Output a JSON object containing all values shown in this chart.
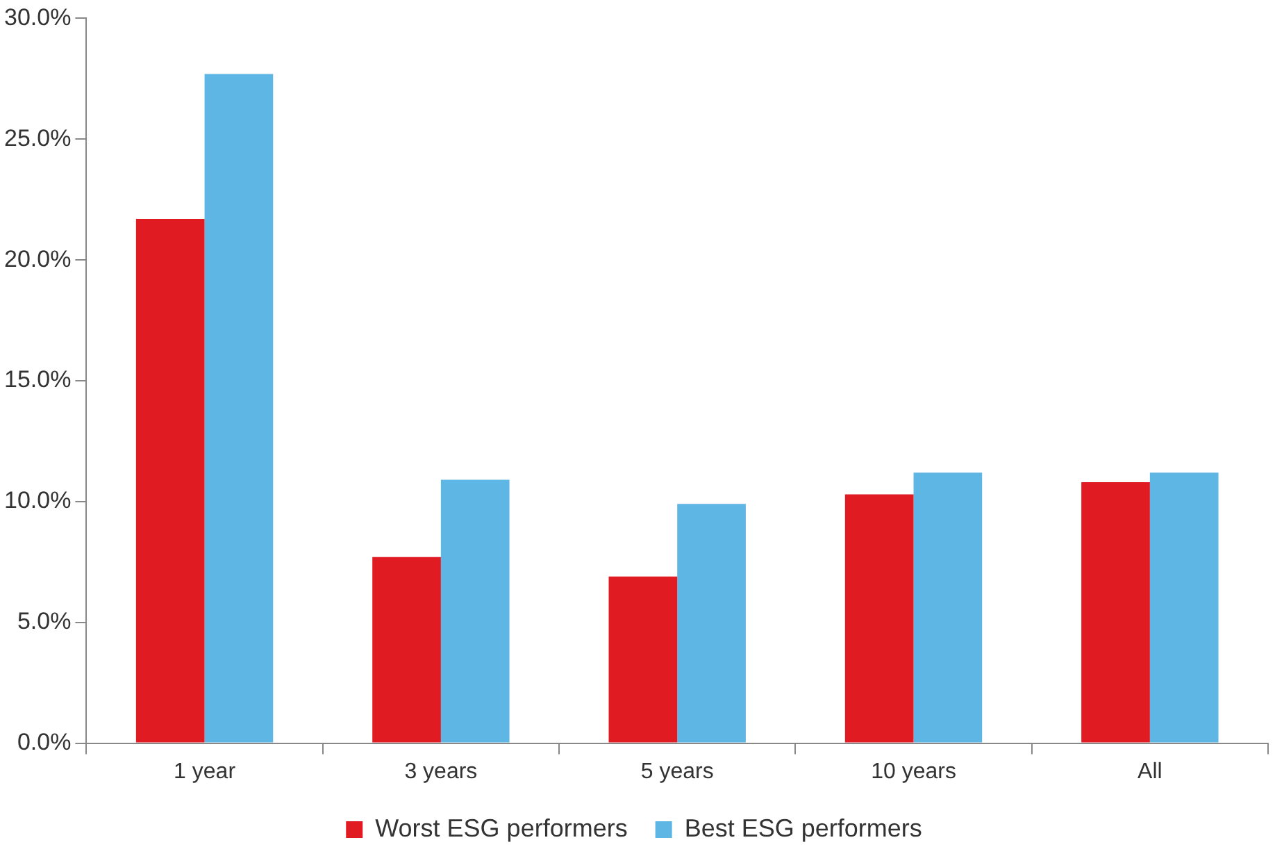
{
  "chart_data": {
    "type": "bar",
    "categories": [
      "1 year",
      "3 years",
      "5 years",
      "10 years",
      "All"
    ],
    "series": [
      {
        "name": "Worst ESG performers",
        "color": "#e01b22",
        "values": [
          21.7,
          7.7,
          6.9,
          10.3,
          10.8
        ]
      },
      {
        "name": "Best ESG performers",
        "color": "#5eb6e4",
        "values": [
          27.7,
          10.9,
          9.9,
          11.2,
          11.2
        ]
      }
    ],
    "ylim": [
      0,
      30
    ],
    "yticks": [
      {
        "value": 0,
        "label": "0.0%"
      },
      {
        "value": 5,
        "label": "5.0%"
      },
      {
        "value": 10,
        "label": "10.0%"
      },
      {
        "value": 15,
        "label": "15.0%"
      },
      {
        "value": 20,
        "label": "20.0%"
      },
      {
        "value": 25,
        "label": "25.0%"
      },
      {
        "value": 30,
        "label": "30.0%"
      }
    ],
    "grid": false,
    "legend": "bottom"
  }
}
